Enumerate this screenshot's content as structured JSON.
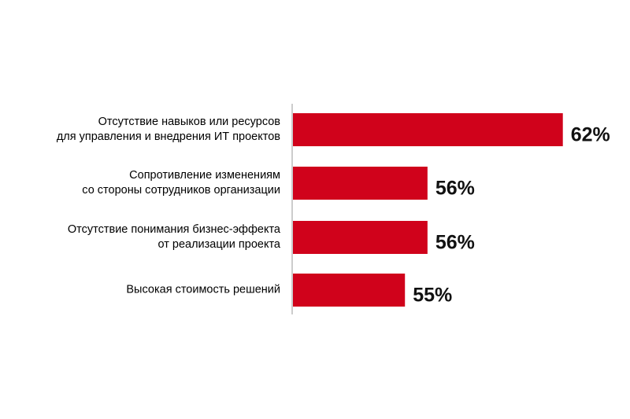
{
  "chart_data": {
    "type": "barh",
    "categories": [
      "Отсутствие  навыков или ресурсов\nдля управления и внедрения ИТ проектов",
      "Сопротивление  изменениям\nсо стороны  сотрудников организации",
      "Отсутствие  понимания бизнес-эффекта\nот реализации  проекта",
      "Высокая стоимость решений"
    ],
    "values": [
      62,
      56,
      56,
      55
    ],
    "value_labels": [
      "62%",
      "56%",
      "56%",
      "55%"
    ],
    "color": "#d0021b",
    "xlim": [
      50,
      64
    ]
  }
}
